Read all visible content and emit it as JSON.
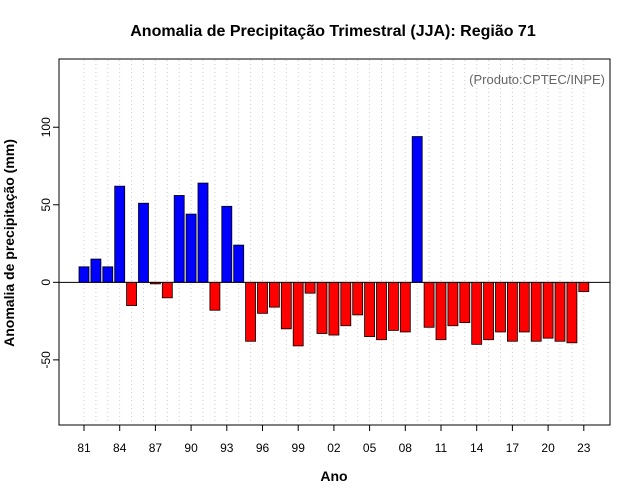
{
  "chart_data": {
    "type": "bar",
    "title": "Anomalia de Precipitação Trimestral (JJA): Região 71",
    "xlabel": "Ano",
    "ylabel": "Anomalia de precipitação (mm)",
    "credit": "(Produto:CPTEC/INPE)",
    "ylim": [
      -92,
      144
    ],
    "yticks": [
      -50,
      0,
      50,
      100
    ],
    "ytick_labels": [
      "-50",
      "0",
      "50",
      "100"
    ],
    "grid": "vertical dotted",
    "colors": {
      "positive": "#0000ff",
      "negative": "#ff0000",
      "zero_line": "#000000",
      "grid": "#cccccc"
    },
    "categories": [
      "1981",
      "1982",
      "1983",
      "1984",
      "1985",
      "1986",
      "1987",
      "1988",
      "1989",
      "1990",
      "1991",
      "1992",
      "1993",
      "1994",
      "1995",
      "1996",
      "1997",
      "1998",
      "1999",
      "2000",
      "2001",
      "2002",
      "2003",
      "2004",
      "2005",
      "2006",
      "2007",
      "2008",
      "2009",
      "2010",
      "2011",
      "2012",
      "2013",
      "2014",
      "2015",
      "2016",
      "2017",
      "2018",
      "2019",
      "2020",
      "2021",
      "2022",
      "2023"
    ],
    "xtick_labels": [
      "81",
      "84",
      "87",
      "90",
      "93",
      "96",
      "99",
      "02",
      "05",
      "08",
      "11",
      "14",
      "17",
      "20",
      "23"
    ],
    "xtick_positions": [
      1981,
      1984,
      1987,
      1990,
      1993,
      1996,
      1999,
      2002,
      2005,
      2008,
      2011,
      2014,
      2017,
      2020,
      2023
    ],
    "values": [
      10,
      15,
      10,
      62,
      -15,
      51,
      -1,
      -10,
      56,
      44,
      64,
      -18,
      49,
      24,
      -38,
      -20,
      -16,
      -30,
      -41,
      -7,
      -33,
      -34,
      -28,
      -21,
      -35,
      -37,
      -31,
      -32,
      94,
      -29,
      -37,
      -28,
      -26,
      -40,
      -37,
      -32,
      -38,
      -32,
      -38,
      -36,
      -38,
      -39,
      -6
    ]
  }
}
